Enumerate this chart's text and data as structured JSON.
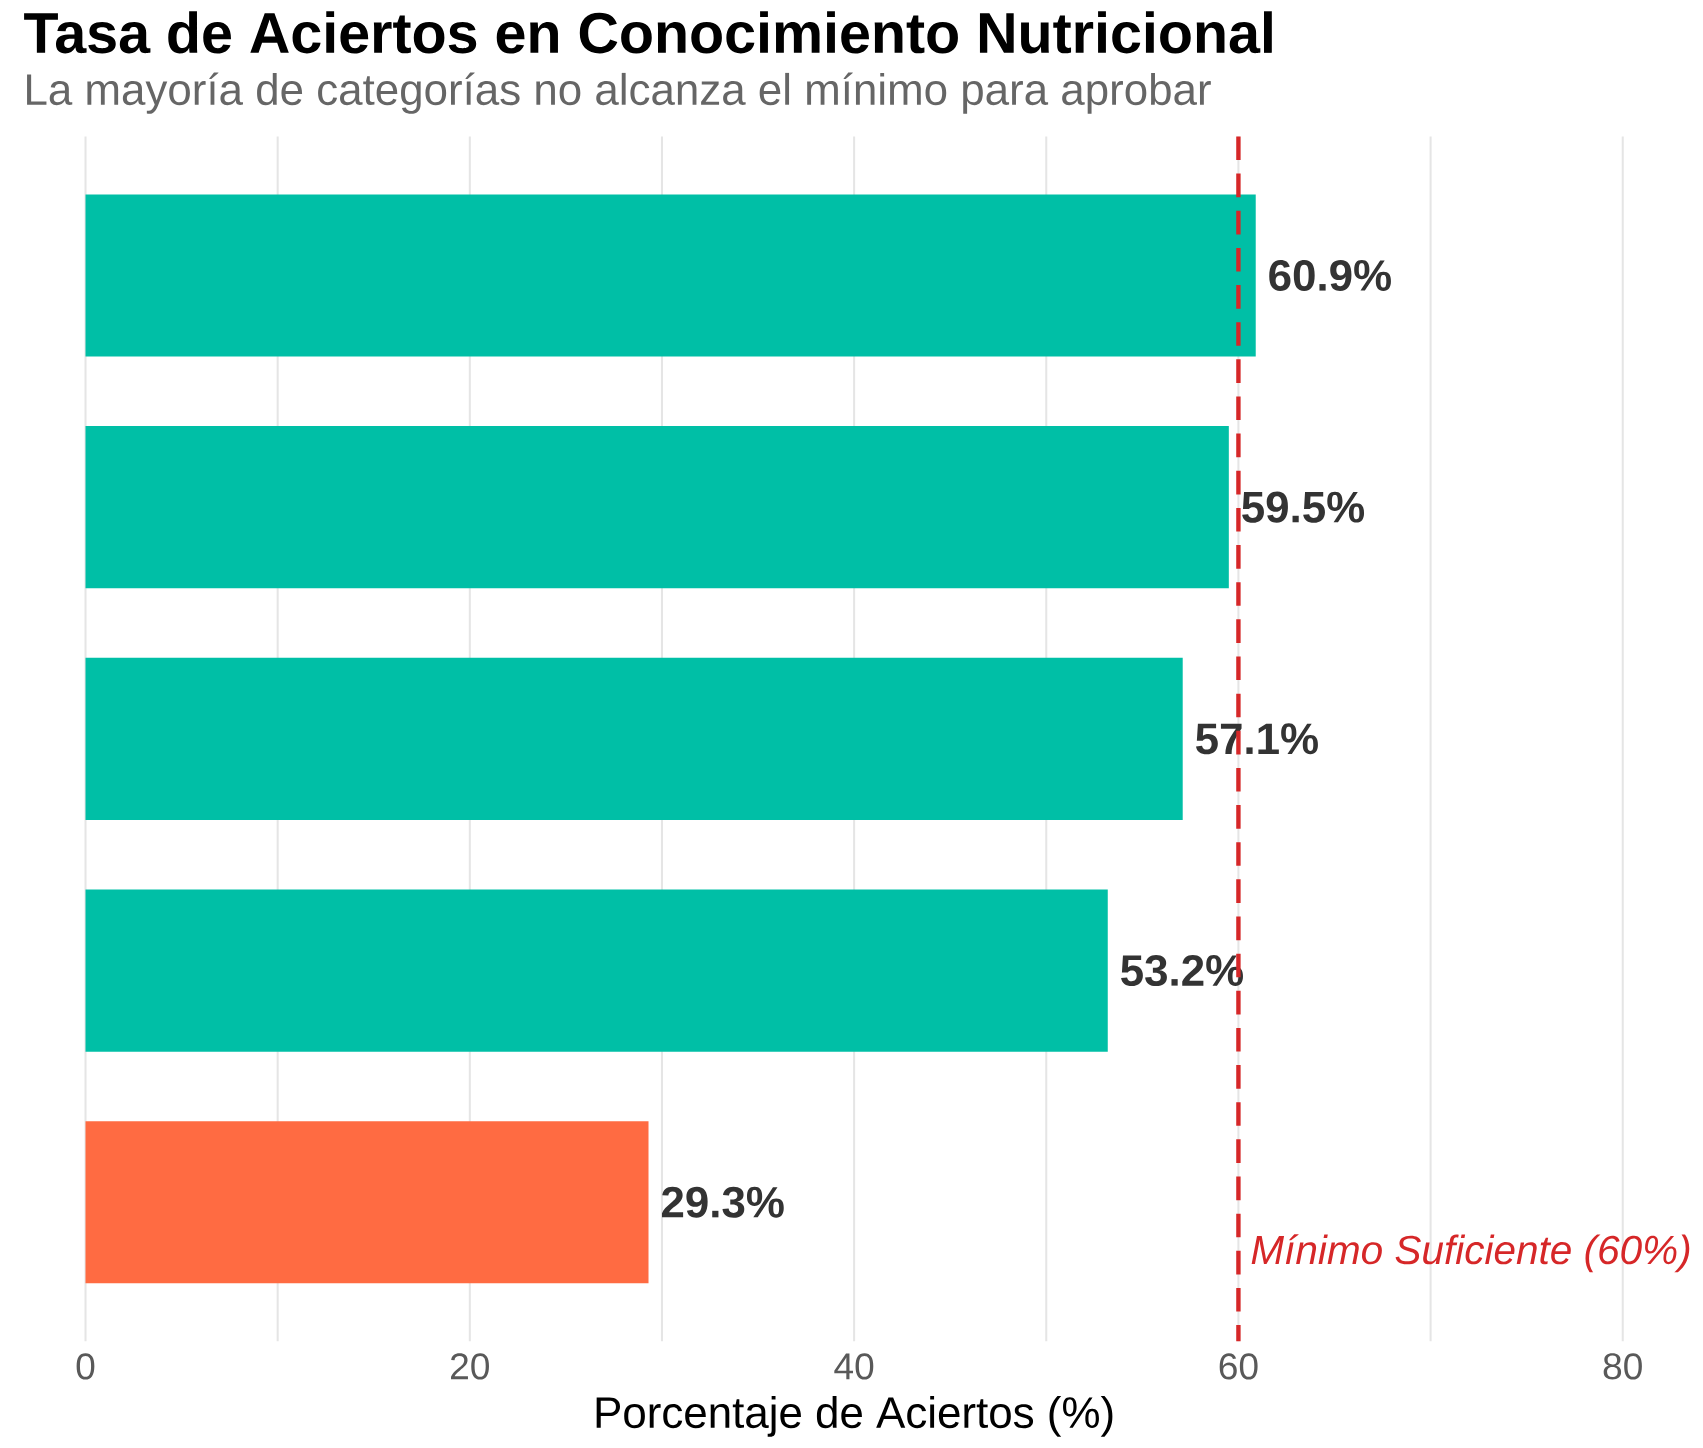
{
  "chart_data": {
    "type": "bar",
    "orientation": "horizontal",
    "title": "Tasa de Aciertos en Conocimiento Nutricional",
    "subtitle": "La mayoría de categorías no alcanza el mínimo para aprobar",
    "xlabel": "Porcentaje de Aciertos (%)",
    "categories": [
      null,
      null,
      null,
      null,
      null
    ],
    "values": [
      60.9,
      59.5,
      57.1,
      53.2,
      29.3
    ],
    "colors": [
      "#00bfa6",
      "#00bfa6",
      "#00bfa6",
      "#00bfa6",
      "#ff6b42"
    ],
    "value_labels": [
      "60.9%",
      "59.5%",
      "57.1%",
      "53.2%",
      "29.3%"
    ],
    "xlim": [
      0,
      80
    ],
    "xticks": [
      0,
      {
        "value": 10,
        "label": null
      },
      20,
      {
        "value": 30,
        "label": null
      },
      40,
      {
        "value": 50,
        "label": null
      },
      60,
      {
        "value": 70,
        "label": null
      },
      80
    ],
    "grid": "x",
    "ref_lines": [
      {
        "axis": "x",
        "value": 60,
        "label": "Mínimo Suficiente (60%)",
        "color": "#d62728",
        "line_style": "dashed"
      }
    ]
  }
}
